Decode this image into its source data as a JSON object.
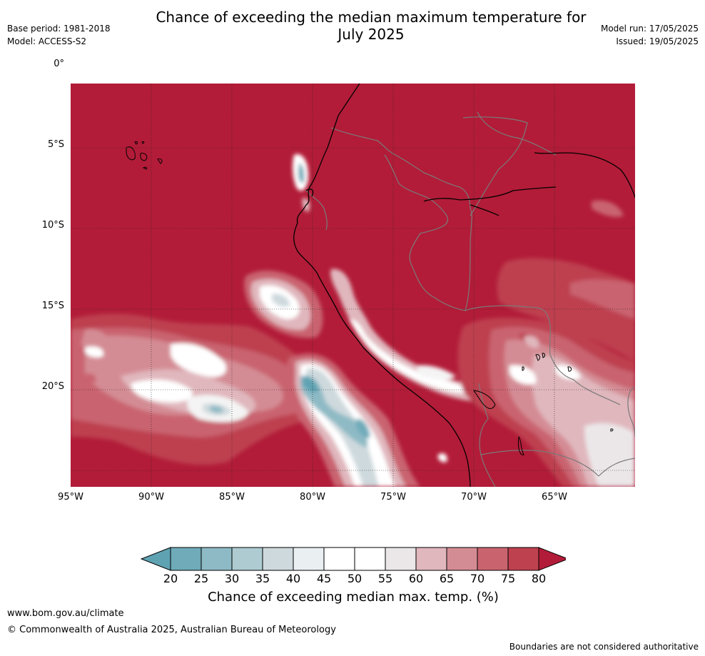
{
  "header": {
    "title_line1": "Chance of exceeding the median maximum temperature for",
    "title_line2": "July 2025",
    "base_period": "Base period: 1981-2018",
    "model": "Model: ACCESS-S2",
    "model_run": "Model run: 17/05/2025",
    "issued": "Issued: 19/05/2025"
  },
  "map": {
    "lat_labels": [
      "0°",
      "5°S",
      "10°S",
      "15°S",
      "20°S"
    ],
    "lon_labels": [
      "95°W",
      "90°W",
      "85°W",
      "80°W",
      "75°W",
      "70°W",
      "65°W"
    ],
    "background_color": "#b21c38"
  },
  "colorbar": {
    "ticks": [
      "20",
      "25",
      "30",
      "35",
      "40",
      "45",
      "50",
      "55",
      "60",
      "65",
      "70",
      "75",
      "80"
    ],
    "colors": [
      "#5fa3b3",
      "#6fabb9",
      "#8ebac5",
      "#adcbd1",
      "#ced9dd",
      "#eaeff2",
      "#ffffff",
      "#ffffff",
      "#ebe7e9",
      "#e0b7bd",
      "#d48c94",
      "#c9646f",
      "#be414f",
      "#b21c38"
    ],
    "label": "Chance of exceeding median max. temp. (%)"
  },
  "footer": {
    "url": "www.bom.gov.au/climate",
    "copyright": "© Commonwealth of Australia 2025, Australian Bureau of Meteorology",
    "note": "Boundaries are not considered authoritative"
  }
}
